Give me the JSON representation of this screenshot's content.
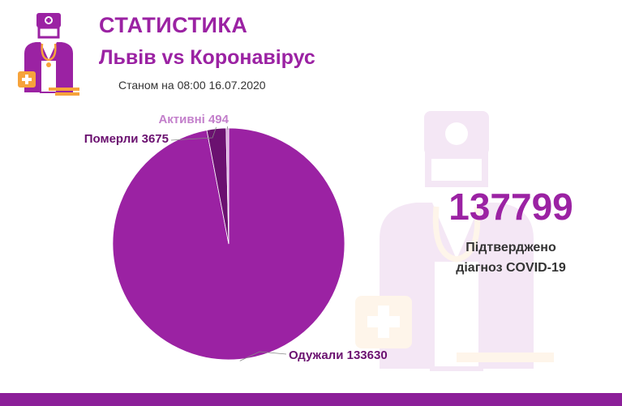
{
  "header": {
    "title": "СТАТИСТИКА",
    "subtitle": "Львів vs Коронавірус",
    "date": "Станом на 08:00 16.07.2020"
  },
  "logo": {
    "icon": "doctor-icon"
  },
  "watermark": {
    "icon": "doctor-icon"
  },
  "kpi": {
    "value": "137799",
    "line1": "Підтверджено",
    "line2": "діагноз COVID-19"
  },
  "colors": {
    "accent": "#9b22a3",
    "dark": "#6b1170",
    "light": "#d7a1dc",
    "orange": "#f6a33b"
  },
  "chart_data": {
    "type": "pie",
    "title": "",
    "slices": [
      {
        "label": "Одужали 133630",
        "value": 133630,
        "color": "#9b22a3"
      },
      {
        "label": "Померли 3675",
        "value": 3675,
        "color": "#6b1170"
      },
      {
        "label": "Активні 494",
        "value": 494,
        "color": "#d7a1dc"
      }
    ]
  }
}
